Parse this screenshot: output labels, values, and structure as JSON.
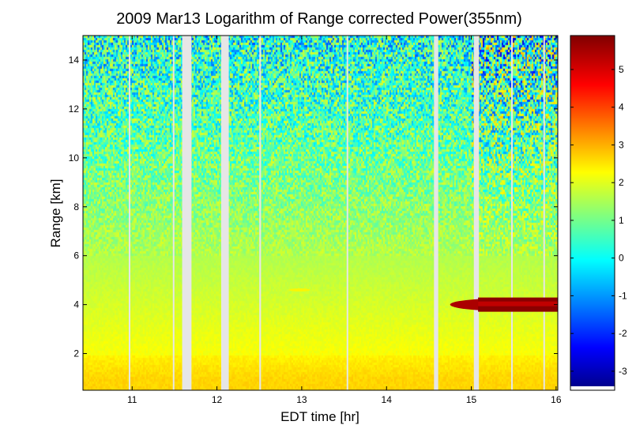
{
  "chart_data": {
    "type": "heatmap",
    "title": "2009 Mar13  Logarithm of Range corrected Power(355nm)",
    "xlabel": "EDT time [hr]",
    "ylabel": "Range [km]",
    "xlim": [
      10.42,
      16.02
    ],
    "ylim": [
      0.5,
      15
    ],
    "x_ticks": [
      11,
      12,
      13,
      14,
      15,
      16
    ],
    "y_ticks": [
      2,
      4,
      6,
      8,
      10,
      12,
      14
    ],
    "colorbar": {
      "range": [
        -3.4,
        5.9
      ],
      "ticks": [
        -3,
        -2,
        -1,
        0,
        1,
        2,
        3,
        4,
        5
      ],
      "colormap": "jet"
    },
    "data_gaps": [
      {
        "start": 10.96,
        "end": 10.975
      },
      {
        "start": 11.48,
        "end": 11.495
      },
      {
        "start": 11.59,
        "end": 11.7
      },
      {
        "start": 12.05,
        "end": 12.14
      },
      {
        "start": 12.5,
        "end": 12.52
      },
      {
        "start": 13.53,
        "end": 13.545
      },
      {
        "start": 14.56,
        "end": 14.61
      },
      {
        "start": 15.03,
        "end": 15.09
      },
      {
        "start": 15.47,
        "end": 15.485
      },
      {
        "start": 15.85,
        "end": 15.865
      }
    ],
    "features": [
      {
        "name": "",
        "x_start": 14.75,
        "x_end": 16.02,
        "range_center": 4.0,
        "value": 5.5
      },
      {
        "name": "",
        "x_start": 12.85,
        "x_end": 13.1,
        "range_center": 4.6,
        "value": 2.5
      }
    ]
  }
}
